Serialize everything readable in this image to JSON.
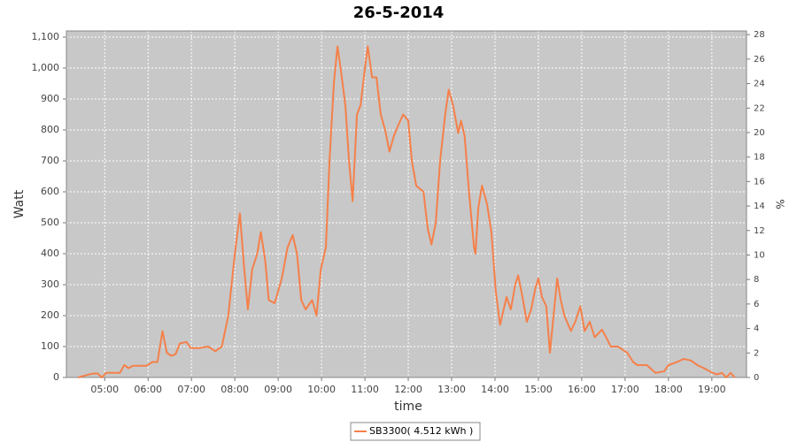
{
  "chart_data": {
    "type": "line",
    "title": "26-5-2014",
    "x_label": "time",
    "y_label": "Watt",
    "y2_label": "%",
    "x": [
      "04:23",
      "04:42",
      "04:50",
      "04:56",
      "05:02",
      "05:21",
      "05:27",
      "05:33",
      "05:39",
      "05:58",
      "06:06",
      "06:13",
      "06:20",
      "06:26",
      "06:32",
      "06:38",
      "06:44",
      "06:53",
      "06:59",
      "07:11",
      "07:23",
      "07:33",
      "07:42",
      "07:51",
      "08:00",
      "08:07",
      "08:13",
      "08:18",
      "08:24",
      "08:31",
      "08:36",
      "08:42",
      "08:47",
      "08:55",
      "09:05",
      "09:13",
      "09:20",
      "09:26",
      "09:32",
      "09:38",
      "09:47",
      "09:53",
      "09:59",
      "10:06",
      "10:11",
      "10:17",
      "10:22",
      "10:27",
      "10:33",
      "10:38",
      "10:43",
      "10:49",
      "10:54",
      "11:00",
      "11:04",
      "11:10",
      "11:16",
      "11:22",
      "11:28",
      "11:34",
      "11:40",
      "11:47",
      "11:53",
      "12:00",
      "12:05",
      "12:11",
      "12:21",
      "12:27",
      "12:32",
      "12:38",
      "12:44",
      "12:51",
      "12:56",
      "13:02",
      "13:09",
      "13:13",
      "13:18",
      "13:24",
      "13:31",
      "13:33",
      "13:37",
      "13:42",
      "13:49",
      "13:55",
      "14:01",
      "14:07",
      "14:16",
      "14:22",
      "14:28",
      "14:32",
      "14:38",
      "14:44",
      "14:50",
      "14:56",
      "15:00",
      "15:05",
      "15:11",
      "15:16",
      "15:21",
      "15:26",
      "15:31",
      "15:36",
      "15:45",
      "15:51",
      "15:58",
      "16:04",
      "16:11",
      "16:18",
      "16:28",
      "16:36",
      "16:40",
      "16:50",
      "17:03",
      "17:11",
      "17:17",
      "17:30",
      "17:42",
      "17:54",
      "18:00",
      "18:12",
      "18:21",
      "18:31",
      "18:40",
      "18:49",
      "19:01",
      "19:07",
      "19:14",
      "19:20",
      "19:26",
      "19:32"
    ],
    "series": [
      {
        "name": "SB3300( 4.512 kWh )",
        "color": "#f5804a",
        "values": [
          0,
          12,
          13,
          0,
          15,
          15,
          40,
          30,
          38,
          38,
          50,
          50,
          150,
          80,
          70,
          75,
          110,
          115,
          95,
          95,
          100,
          85,
          100,
          200,
          400,
          530,
          350,
          220,
          350,
          400,
          470,
          380,
          250,
          240,
          320,
          420,
          460,
          400,
          250,
          220,
          250,
          200,
          350,
          420,
          700,
          950,
          1070,
          990,
          880,
          700,
          570,
          850,
          880,
          1000,
          1070,
          970,
          970,
          850,
          800,
          730,
          780,
          820,
          850,
          830,
          700,
          620,
          600,
          480,
          430,
          500,
          700,
          850,
          930,
          880,
          790,
          830,
          780,
          600,
          420,
          400,
          550,
          620,
          560,
          470,
          280,
          170,
          260,
          220,
          300,
          330,
          260,
          180,
          220,
          290,
          320,
          260,
          230,
          80,
          200,
          320,
          250,
          200,
          150,
          180,
          230,
          150,
          180,
          130,
          155,
          120,
          100,
          100,
          80,
          50,
          40,
          40,
          15,
          20,
          40,
          50,
          60,
          55,
          40,
          30,
          15,
          10,
          15,
          0,
          15,
          0
        ]
      }
    ],
    "xlim": [
      "04:07",
      "19:48"
    ],
    "xticks": [
      "05:00",
      "06:00",
      "07:00",
      "08:00",
      "09:00",
      "10:00",
      "11:00",
      "12:00",
      "13:00",
      "14:00",
      "15:00",
      "16:00",
      "17:00",
      "18:00",
      "19:00"
    ],
    "ylim": [
      0,
      1120
    ],
    "yticks": [
      0,
      100,
      200,
      300,
      400,
      500,
      600,
      700,
      800,
      900,
      {
        "value": 1000,
        "label": "1,000"
      },
      {
        "value": 1100,
        "label": "1,100"
      }
    ],
    "y2lim": [
      0,
      28.3
    ],
    "y2ticks": [
      0,
      2,
      4,
      6,
      8,
      10,
      12,
      14,
      16,
      18,
      20,
      22,
      24,
      26,
      28
    ],
    "grid": true,
    "legend": "bottom"
  }
}
